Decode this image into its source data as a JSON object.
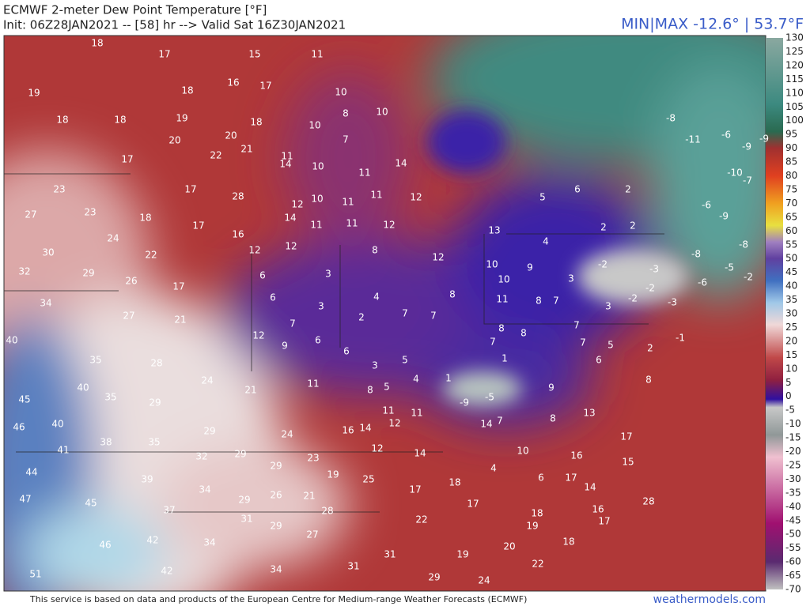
{
  "header": {
    "title": "ECMWF 2-meter Dew Point Temperature [°F]",
    "init": "Init: 06Z28JAN2021 -- [58] hr --> Valid Sat 16Z30JAN2021",
    "minmax": "MIN|MAX -12.6° | 53.7°F"
  },
  "colorbar_ticks": [
    130,
    125,
    120,
    115,
    110,
    105,
    100,
    95,
    90,
    85,
    80,
    75,
    70,
    65,
    60,
    55,
    50,
    45,
    40,
    35,
    30,
    25,
    20,
    15,
    10,
    5,
    0,
    -5,
    -10,
    -15,
    -20,
    -25,
    -30,
    -35,
    -40,
    -45,
    -50,
    -55,
    -60,
    -65,
    -70
  ],
  "stations": [
    18,
    17,
    15,
    11,
    19,
    18,
    16,
    17,
    10,
    18,
    18,
    19,
    18,
    8,
    10,
    20,
    20,
    7,
    10,
    17,
    22,
    21,
    11,
    14,
    10,
    11,
    14,
    23,
    17,
    28,
    12,
    10,
    11,
    11,
    12,
    6,
    2,
    27,
    23,
    18,
    17,
    16,
    14,
    11,
    11,
    12,
    5,
    13,
    2,
    2,
    24,
    30,
    22,
    12,
    12,
    8,
    12,
    4,
    32,
    29,
    26,
    6,
    3,
    10,
    9,
    -2,
    -3,
    34,
    17,
    6,
    3,
    4,
    8,
    10,
    11,
    8,
    7,
    3,
    3,
    -2,
    -2,
    -3,
    27,
    21,
    7,
    2,
    7,
    7,
    8,
    8,
    7,
    40,
    12,
    9,
    6,
    6,
    5,
    7,
    7,
    5,
    2,
    35,
    28,
    3,
    1,
    1,
    6,
    40,
    24,
    21,
    11,
    8,
    5,
    4,
    9,
    8,
    45,
    35,
    29,
    -9,
    -5,
    46,
    40,
    29,
    16,
    14,
    11,
    12,
    11,
    14,
    7,
    8,
    13,
    41,
    38,
    35,
    24,
    17,
    44,
    32,
    29,
    29,
    23,
    12,
    14,
    10,
    16,
    15,
    39,
    19,
    25,
    4,
    6,
    17,
    18,
    47,
    34,
    29,
    26,
    21,
    17,
    14,
    17,
    45,
    37,
    28,
    18,
    16,
    28,
    31,
    29,
    22,
    19,
    17,
    27,
    18,
    46,
    42,
    34,
    31,
    19,
    20,
    34,
    31,
    22,
    51,
    42,
    29,
    24,
    -8,
    -6,
    -11,
    -9,
    -9,
    -10,
    -7,
    -6,
    -9,
    -8,
    -8,
    -5,
    -2,
    -6,
    -1
  ],
  "footer": {
    "credit": "This service is based on data and products of the European Centre for Medium-range Weather Forecasts (ECMWF)",
    "site": "weathermodels.com"
  }
}
